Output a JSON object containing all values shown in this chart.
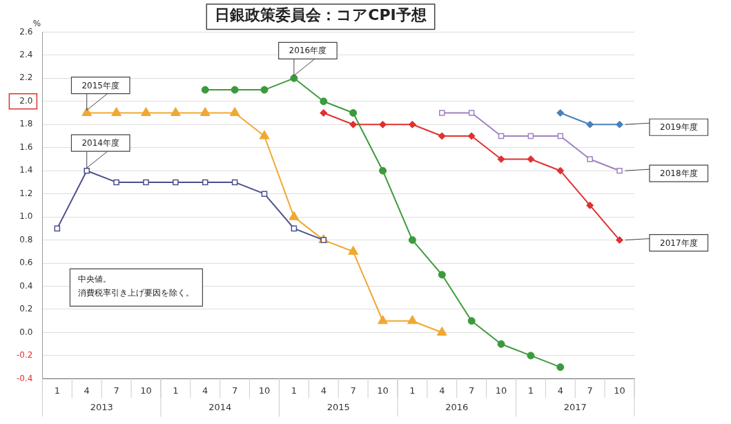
{
  "chart_data": {
    "type": "line",
    "title": "日銀政策委員会：コアCPI予想",
    "ylabel": "%",
    "categories": [
      "1",
      "4",
      "7",
      "10",
      "1",
      "4",
      "7",
      "10",
      "1",
      "4",
      "7",
      "10",
      "1",
      "4",
      "7",
      "10",
      "1",
      "4",
      "7",
      "10"
    ],
    "series": [
      {
        "name": "2014年度",
        "color": "#4a4f8c",
        "marker": "square",
        "values": [
          0.9,
          1.4,
          1.3,
          1.3,
          1.3,
          1.3,
          1.3,
          1.2,
          0.9,
          0.8,
          null,
          null,
          null,
          null,
          null,
          null,
          null,
          null,
          null,
          null
        ]
      },
      {
        "name": "2015年度",
        "color": "#f0a830",
        "marker": "triangle",
        "values": [
          null,
          1.9,
          1.9,
          1.9,
          1.9,
          1.9,
          1.9,
          1.7,
          1.0,
          0.8,
          0.7,
          0.1,
          0.1,
          0.0,
          null,
          null,
          null,
          null,
          null,
          null
        ]
      },
      {
        "name": "2016年度",
        "color": "#3c9a3c",
        "marker": "circle",
        "values": [
          null,
          null,
          null,
          null,
          null,
          2.1,
          2.1,
          2.1,
          2.2,
          2.0,
          1.9,
          1.4,
          0.8,
          0.5,
          0.1,
          -0.1,
          -0.2,
          -0.3,
          null,
          null
        ]
      },
      {
        "name": "2017年度",
        "color": "#e03030",
        "marker": "diamond",
        "values": [
          null,
          null,
          null,
          null,
          null,
          null,
          null,
          null,
          null,
          1.9,
          1.8,
          1.8,
          1.8,
          1.7,
          1.7,
          1.5,
          1.5,
          1.4,
          1.1,
          0.8
        ]
      },
      {
        "name": "2018年度",
        "color": "#a080c0",
        "marker": "square",
        "values": [
          null,
          null,
          null,
          null,
          null,
          null,
          null,
          null,
          null,
          null,
          null,
          null,
          null,
          1.9,
          1.9,
          1.7,
          1.7,
          1.7,
          1.5,
          1.4
        ]
      },
      {
        "name": "2019年度",
        "color": "#4a80b8",
        "marker": "diamond",
        "values": [
          null,
          null,
          null,
          null,
          null,
          null,
          null,
          null,
          null,
          null,
          null,
          null,
          null,
          null,
          null,
          null,
          null,
          1.9,
          1.8,
          1.8
        ]
      }
    ],
    "ylim": [
      -0.4,
      2.6
    ],
    "yticks": [
      {
        "value": -0.4,
        "label": "-0.4"
      },
      {
        "value": -0.2,
        "label": "-0.2"
      },
      {
        "value": 0,
        "label": "0.0"
      },
      {
        "value": 0.2,
        "label": "0.2"
      },
      {
        "value": 0.4,
        "label": "0.4"
      },
      {
        "value": 0.6,
        "label": "0.6"
      },
      {
        "value": 0.8,
        "label": "0.8"
      },
      {
        "value": 1,
        "label": "1.0"
      },
      {
        "value": 1.2,
        "label": "1.2"
      },
      {
        "value": 1.4,
        "label": "1.4"
      },
      {
        "value": 1.6,
        "label": "1.6"
      },
      {
        "value": 1.8,
        "label": "1.8"
      },
      {
        "value": 2,
        "label": "2.0"
      },
      {
        "value": 2.2,
        "label": "2.2"
      },
      {
        "value": 2.4,
        "label": "2.4"
      },
      {
        "value": 2.6,
        "label": "2.6"
      }
    ],
    "grid": "y",
    "legend": false,
    "line_style": "solid",
    "annotations": [
      "2013",
      "2014",
      "2015",
      "2016",
      "2017",
      "中央値。",
      "消費税率引き上げ要因を除く。"
    ]
  }
}
